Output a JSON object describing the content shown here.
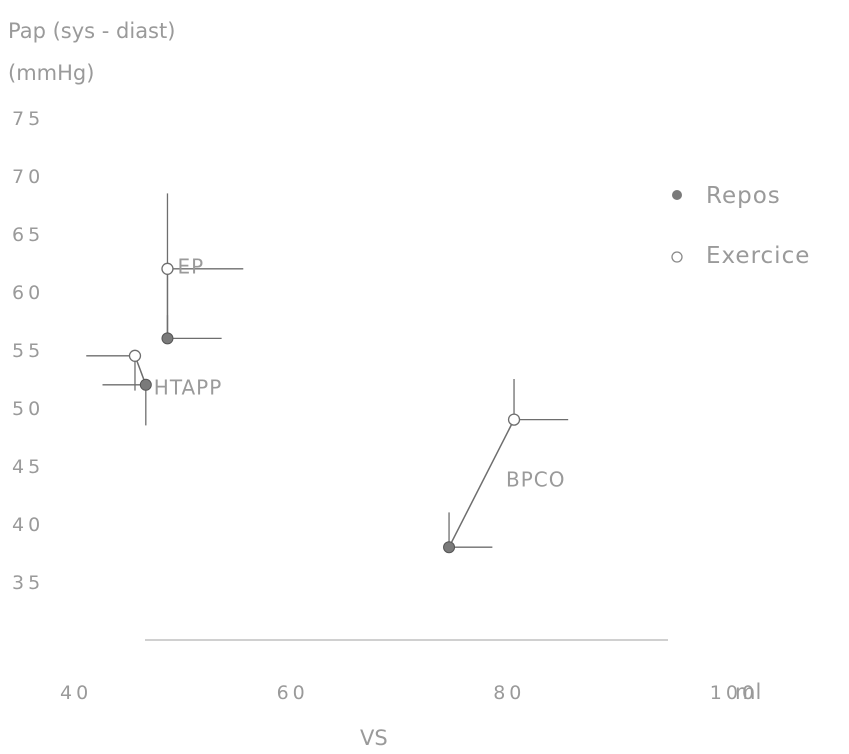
{
  "chart_data": {
    "type": "scatter",
    "ylabel_line1": "Pap (sys - diast)",
    "ylabel_line2": "(mmHg)",
    "xlabel": "VS",
    "x_unit": "ml",
    "xlim": [
      40,
      100
    ],
    "ylim": [
      35,
      75
    ],
    "x_ticks": [
      40,
      60,
      80,
      100
    ],
    "y_ticks": [
      75,
      70,
      65,
      60,
      55,
      50,
      45,
      40,
      35
    ],
    "legend_position": "top-right",
    "legend": [
      {
        "label": "Repos",
        "marker": "filled"
      },
      {
        "label": "Exercice",
        "marker": "open"
      }
    ],
    "groups": [
      {
        "label": "EP",
        "points": [
          {
            "state": "Repos",
            "x": 49,
            "y": 56,
            "x_err_plus": 5,
            "y_err_plus": 2
          },
          {
            "state": "Exercice",
            "x": 49,
            "y": 62,
            "x_err_plus": 7,
            "y_err_plus": 6.5
          }
        ]
      },
      {
        "label": "HTAPP",
        "points": [
          {
            "state": "Repos",
            "x": 47,
            "y": 52,
            "x_err_minus": 4,
            "y_err_minus": 3.5
          },
          {
            "state": "Exercice",
            "x": 46,
            "y": 54.5,
            "x_err_minus": 4.5,
            "y_err_minus": 3
          }
        ]
      },
      {
        "label": "BPCO",
        "points": [
          {
            "state": "Repos",
            "x": 75,
            "y": 38,
            "x_err_plus": 4,
            "y_err_plus": 3
          },
          {
            "state": "Exercice",
            "x": 81,
            "y": 49,
            "x_err_plus": 5,
            "y_err_plus": 3.5
          }
        ]
      }
    ]
  }
}
